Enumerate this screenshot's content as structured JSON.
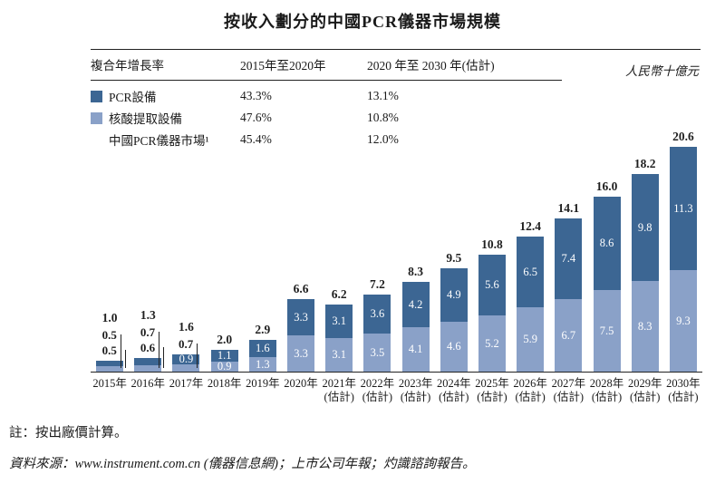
{
  "page": {
    "title": "按收入劃分的中國PCR儀器市場規模",
    "unit_label": "人民幣十億元",
    "note": "註：按出廠價計算。",
    "source": "資料來源：www.instrument.com.cn (儀器信息網)；上市公司年報；灼識諮詢報告。"
  },
  "cagr_table": {
    "col_headers": [
      "複合年增長率",
      "2015年至2020年",
      "2020 年至 2030 年(估計)"
    ],
    "rows": [
      {
        "legend": "dark",
        "label": "PCR設備",
        "cagr_2015_2020": "43.3%",
        "cagr_2020_2030": "13.1%"
      },
      {
        "legend": "light",
        "label": "核酸提取設備",
        "cagr_2015_2020": "47.6%",
        "cagr_2020_2030": "10.8%"
      },
      {
        "legend": "none",
        "label": "中國PCR儀器市場¹",
        "cagr_2015_2020": "45.4%",
        "cagr_2020_2030": "12.0%"
      }
    ]
  },
  "colors": {
    "pcr_dark_blue": "#3c6693",
    "extraction_light_blue": "#8aa1c8",
    "axis": "#222222"
  },
  "chart_data": {
    "type": "bar",
    "stacked": true,
    "title": "按收入劃分的中國PCR儀器市場規模",
    "ylabel": "人民幣十億元",
    "grid": false,
    "legend_position": "top-left-table",
    "ylim": [
      0,
      21
    ],
    "categories": [
      "2015年",
      "2016年",
      "2017年",
      "2018年",
      "2019年",
      "2020年",
      "2021年\n(估計)",
      "2022年\n(估計)",
      "2023年\n(估計)",
      "2024年\n(估計)",
      "2025年\n(估計)",
      "2026年\n(估計)",
      "2027年\n(估計)",
      "2028年\n(估計)",
      "2029年\n(估計)",
      "2030年\n(估計)"
    ],
    "series": [
      {
        "name": "PCR設備",
        "stack_position": "top",
        "color": "#3c6693",
        "values": [
          0.5,
          0.7,
          0.9,
          1.1,
          1.6,
          3.3,
          3.1,
          3.6,
          4.2,
          4.9,
          5.6,
          6.5,
          7.4,
          8.6,
          9.8,
          11.3
        ]
      },
      {
        "name": "核酸提取設備",
        "stack_position": "bottom",
        "color": "#8aa1c8",
        "values": [
          0.5,
          0.6,
          0.7,
          0.9,
          1.3,
          3.3,
          3.1,
          3.5,
          4.1,
          4.6,
          5.2,
          5.9,
          6.7,
          7.5,
          8.3,
          9.3
        ]
      }
    ],
    "totals": [
      1.0,
      1.3,
      1.6,
      2.0,
      2.9,
      6.6,
      6.2,
      7.2,
      8.3,
      9.5,
      10.8,
      12.4,
      14.1,
      16.0,
      18.2,
      20.6
    ]
  }
}
